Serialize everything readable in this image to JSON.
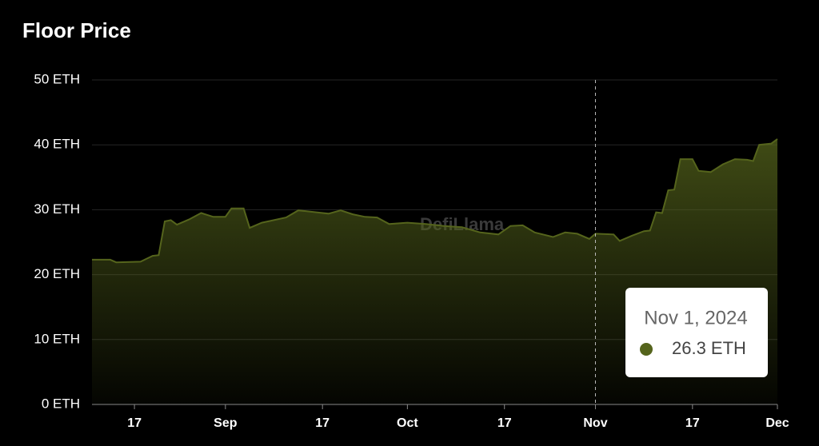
{
  "chart_data": {
    "type": "area",
    "title": "Floor Price",
    "color": "#55641c",
    "x": [
      "2024-08-10",
      "2024-08-13",
      "2024-08-14",
      "2024-08-18",
      "2024-08-20",
      "2024-08-21",
      "2024-08-22",
      "2024-08-23",
      "2024-08-24",
      "2024-08-26",
      "2024-08-28",
      "2024-08-30",
      "2024-09-01",
      "2024-09-02",
      "2024-09-04",
      "2024-09-05",
      "2024-09-07",
      "2024-09-09",
      "2024-09-11",
      "2024-09-13",
      "2024-09-16",
      "2024-09-18",
      "2024-09-20",
      "2024-09-22",
      "2024-09-24",
      "2024-09-26",
      "2024-09-28",
      "2024-10-01",
      "2024-10-04",
      "2024-10-07",
      "2024-10-10",
      "2024-10-13",
      "2024-10-16",
      "2024-10-18",
      "2024-10-20",
      "2024-10-22",
      "2024-10-25",
      "2024-10-27",
      "2024-10-29",
      "2024-10-31",
      "2024-11-01",
      "2024-11-04",
      "2024-11-05",
      "2024-11-07",
      "2024-11-09",
      "2024-11-10",
      "2024-11-11",
      "2024-11-12",
      "2024-11-13",
      "2024-11-14",
      "2024-11-15",
      "2024-11-17",
      "2024-11-18",
      "2024-11-20",
      "2024-11-22",
      "2024-11-24",
      "2024-11-26",
      "2024-11-27",
      "2024-11-28",
      "2024-11-30",
      "2024-12-01"
    ],
    "series": [
      {
        "name": "Floor Price",
        "color": "#55641c",
        "values": [
          22.3,
          22.3,
          21.9,
          22.0,
          22.9,
          23.0,
          28.2,
          28.4,
          27.7,
          28.5,
          29.5,
          28.9,
          28.9,
          30.2,
          30.2,
          27.2,
          28.0,
          28.4,
          28.8,
          29.9,
          29.6,
          29.4,
          29.9,
          29.3,
          28.9,
          28.8,
          27.8,
          28.0,
          27.8,
          27.5,
          27.3,
          26.5,
          26.2,
          27.5,
          27.6,
          26.5,
          25.8,
          26.5,
          26.3,
          25.5,
          26.3,
          26.2,
          25.2,
          26.0,
          26.7,
          26.8,
          29.6,
          29.5,
          33.0,
          33.1,
          37.8,
          37.8,
          36.0,
          35.8,
          37.0,
          37.8,
          37.7,
          37.5,
          40.0,
          40.2,
          40.9
        ]
      }
    ],
    "xlim": [
      "2024-08-10",
      "2024-12-01"
    ],
    "xticks": [
      {
        "value": "2024-08-17",
        "label": "17"
      },
      {
        "value": "2024-09-01",
        "label": "Sep"
      },
      {
        "value": "2024-09-17",
        "label": "17"
      },
      {
        "value": "2024-10-01",
        "label": "Oct"
      },
      {
        "value": "2024-10-17",
        "label": "17"
      },
      {
        "value": "2024-11-01",
        "label": "Nov"
      },
      {
        "value": "2024-11-17",
        "label": "17"
      },
      {
        "value": "2024-12-01",
        "label": "Dec"
      }
    ],
    "ylim": [
      0,
      50
    ],
    "yticks": [
      {
        "value": 0,
        "label": "0 ETH"
      },
      {
        "value": 10,
        "label": "10 ETH"
      },
      {
        "value": 20,
        "label": "20 ETH"
      },
      {
        "value": 30,
        "label": "30 ETH"
      },
      {
        "value": 40,
        "label": "40 ETH"
      },
      {
        "value": 50,
        "label": "50 ETH"
      }
    ],
    "grid": true,
    "watermark": "DefiLlama",
    "tooltip": {
      "x": "2024-11-01",
      "date": "Nov 1, 2024",
      "value": 26.3,
      "value_label": "26.3 ETH"
    }
  }
}
